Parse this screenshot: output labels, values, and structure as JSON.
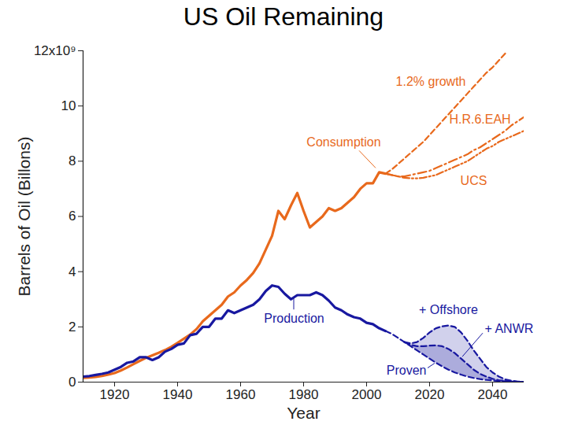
{
  "chart_data": {
    "type": "line",
    "title": "US Oil Remaining",
    "x_label": "Year",
    "y_label": "Barrels of Oil (Billons)",
    "xlim": [
      1910,
      2050
    ],
    "xticks": [
      1920,
      1940,
      1960,
      1980,
      2000,
      2020,
      2040
    ],
    "ylim": [
      0,
      12
    ],
    "yticks": [
      0,
      2,
      4,
      6,
      8,
      10,
      {
        "value": 12,
        "label": "12x10⁹"
      }
    ],
    "grid": false,
    "x": [
      1910,
      1912,
      1914,
      1916,
      1918,
      1920,
      1922,
      1924,
      1926,
      1928,
      1930,
      1932,
      1934,
      1936,
      1938,
      1940,
      1942,
      1944,
      1946,
      1948,
      1950,
      1952,
      1954,
      1956,
      1958,
      1960,
      1962,
      1964,
      1966,
      1968,
      1970,
      1972,
      1974,
      1976,
      1978,
      1980,
      1982,
      1984,
      1986,
      1988,
      1990,
      1992,
      1994,
      1996,
      1998,
      2000,
      2002,
      2004,
      2006,
      2008,
      2010,
      2012,
      2014,
      2016,
      2018,
      2020,
      2022,
      2024,
      2026,
      2028,
      2030,
      2032,
      2034,
      2036,
      2038,
      2040,
      2042,
      2044,
      2046,
      2048,
      2050
    ],
    "series": [
      {
        "name": "Consumption",
        "color": "#e8691c",
        "type": "line",
        "line_style": "solid",
        "values": [
          0.15,
          0.17,
          0.19,
          0.22,
          0.27,
          0.33,
          0.42,
          0.53,
          0.65,
          0.77,
          0.88,
          0.97,
          1.06,
          1.16,
          1.28,
          1.42,
          1.57,
          1.72,
          1.92,
          2.2,
          2.4,
          2.6,
          2.8,
          3.1,
          3.25,
          3.5,
          3.7,
          3.95,
          4.3,
          4.8,
          5.3,
          6.2,
          5.9,
          6.4,
          6.85,
          6.2,
          5.6,
          5.8,
          6.0,
          6.3,
          6.2,
          6.3,
          6.5,
          6.7,
          7.0,
          7.2,
          7.2,
          7.6,
          7.55,
          null,
          null,
          null,
          null,
          null,
          null,
          null,
          null,
          null,
          null,
          null,
          null,
          null,
          null,
          null,
          null,
          null,
          null,
          null,
          null,
          null,
          null
        ]
      },
      {
        "name": "1.2% growth",
        "color": "#e8691c",
        "type": "line",
        "line_style": "dashed",
        "values": [
          null,
          null,
          null,
          null,
          null,
          null,
          null,
          null,
          null,
          null,
          null,
          null,
          null,
          null,
          null,
          null,
          null,
          null,
          null,
          null,
          null,
          null,
          null,
          null,
          null,
          null,
          null,
          null,
          null,
          null,
          null,
          null,
          null,
          null,
          null,
          null,
          null,
          null,
          null,
          null,
          null,
          null,
          null,
          null,
          null,
          null,
          null,
          null,
          7.55,
          7.7,
          7.9,
          8.1,
          8.3,
          8.5,
          8.7,
          8.95,
          9.2,
          9.45,
          9.7,
          9.95,
          10.2,
          10.45,
          10.7,
          10.95,
          11.2,
          11.4,
          11.65,
          11.9,
          null,
          null,
          null
        ]
      },
      {
        "name": "H.R.6.EAH",
        "color": "#e8691c",
        "type": "line",
        "line_style": "dashdot",
        "values": [
          null,
          null,
          null,
          null,
          null,
          null,
          null,
          null,
          null,
          null,
          null,
          null,
          null,
          null,
          null,
          null,
          null,
          null,
          null,
          null,
          null,
          null,
          null,
          null,
          null,
          null,
          null,
          null,
          null,
          null,
          null,
          null,
          null,
          null,
          null,
          null,
          null,
          null,
          null,
          null,
          null,
          null,
          null,
          null,
          null,
          null,
          null,
          null,
          7.55,
          7.5,
          7.45,
          7.45,
          7.5,
          7.55,
          7.6,
          7.65,
          7.75,
          7.85,
          7.95,
          8.05,
          8.15,
          8.25,
          8.4,
          8.5,
          8.65,
          8.8,
          8.95,
          9.1,
          9.3,
          9.45,
          9.6
        ]
      },
      {
        "name": "UCS",
        "color": "#e8691c",
        "type": "line",
        "line_style": "dashdotdot",
        "values": [
          null,
          null,
          null,
          null,
          null,
          null,
          null,
          null,
          null,
          null,
          null,
          null,
          null,
          null,
          null,
          null,
          null,
          null,
          null,
          null,
          null,
          null,
          null,
          null,
          null,
          null,
          null,
          null,
          null,
          null,
          null,
          null,
          null,
          null,
          null,
          null,
          null,
          null,
          null,
          null,
          null,
          null,
          null,
          null,
          null,
          null,
          null,
          null,
          7.55,
          7.5,
          7.45,
          7.4,
          7.38,
          7.38,
          7.4,
          7.45,
          7.5,
          7.6,
          7.7,
          7.8,
          7.9,
          8.0,
          8.15,
          8.3,
          8.45,
          8.55,
          8.7,
          8.8,
          8.9,
          9.0,
          9.1
        ]
      },
      {
        "name": "Production",
        "color": "#1818a0",
        "type": "line",
        "line_style": "solid",
        "values": [
          0.2,
          0.22,
          0.26,
          0.3,
          0.35,
          0.45,
          0.55,
          0.7,
          0.75,
          0.9,
          0.9,
          0.8,
          0.9,
          1.1,
          1.2,
          1.35,
          1.4,
          1.7,
          1.75,
          2.0,
          2.0,
          2.3,
          2.3,
          2.6,
          2.5,
          2.6,
          2.7,
          2.8,
          3.0,
          3.3,
          3.5,
          3.45,
          3.2,
          3.0,
          3.15,
          3.15,
          3.15,
          3.25,
          3.15,
          2.95,
          2.7,
          2.6,
          2.45,
          2.35,
          2.3,
          2.15,
          2.1,
          1.95,
          1.85,
          null,
          null,
          null,
          null,
          null,
          null,
          null,
          null,
          null,
          null,
          null,
          null,
          null,
          null,
          null,
          null,
          null,
          null,
          null,
          null,
          null,
          null
        ]
      },
      {
        "name": "Proven",
        "color": "#1818a0",
        "type": "line",
        "line_style": "dashed",
        "values": [
          null,
          null,
          null,
          null,
          null,
          null,
          null,
          null,
          null,
          null,
          null,
          null,
          null,
          null,
          null,
          null,
          null,
          null,
          null,
          null,
          null,
          null,
          null,
          null,
          null,
          null,
          null,
          null,
          null,
          null,
          null,
          null,
          null,
          null,
          null,
          null,
          null,
          null,
          null,
          null,
          null,
          null,
          null,
          null,
          null,
          null,
          null,
          null,
          1.85,
          1.75,
          1.6,
          1.45,
          1.3,
          1.15,
          1.0,
          0.85,
          0.7,
          0.57,
          0.45,
          0.35,
          0.27,
          0.2,
          0.15,
          0.11,
          0.08,
          0.06,
          0.04,
          0.03,
          0.02,
          0.01,
          0.01
        ]
      },
      {
        "name": "+ ANWR",
        "color": "#1818a0",
        "type": "area",
        "line_style": "dashed",
        "values": [
          null,
          null,
          null,
          null,
          null,
          null,
          null,
          null,
          null,
          null,
          null,
          null,
          null,
          null,
          null,
          null,
          null,
          null,
          null,
          null,
          null,
          null,
          null,
          null,
          null,
          null,
          null,
          null,
          null,
          null,
          null,
          null,
          null,
          null,
          null,
          null,
          null,
          null,
          null,
          null,
          null,
          null,
          null,
          null,
          null,
          null,
          null,
          null,
          null,
          null,
          null,
          1.45,
          1.35,
          1.3,
          1.3,
          1.32,
          1.33,
          1.3,
          1.2,
          1.05,
          0.85,
          0.65,
          0.45,
          0.3,
          0.2,
          0.12,
          0.07,
          0.04,
          0.02,
          0.01,
          0.01
        ]
      },
      {
        "name": "+ Offshore",
        "color": "#1818a0",
        "type": "area",
        "line_style": "dashed",
        "values": [
          null,
          null,
          null,
          null,
          null,
          null,
          null,
          null,
          null,
          null,
          null,
          null,
          null,
          null,
          null,
          null,
          null,
          null,
          null,
          null,
          null,
          null,
          null,
          null,
          null,
          null,
          null,
          null,
          null,
          null,
          null,
          null,
          null,
          null,
          null,
          null,
          null,
          null,
          null,
          null,
          null,
          null,
          null,
          null,
          null,
          null,
          null,
          null,
          null,
          null,
          null,
          1.45,
          1.4,
          1.45,
          1.6,
          1.8,
          1.95,
          2.02,
          2.05,
          2.0,
          1.8,
          1.5,
          1.15,
          0.85,
          0.55,
          0.35,
          0.2,
          0.1,
          0.05,
          0.02,
          0.01
        ]
      }
    ]
  }
}
